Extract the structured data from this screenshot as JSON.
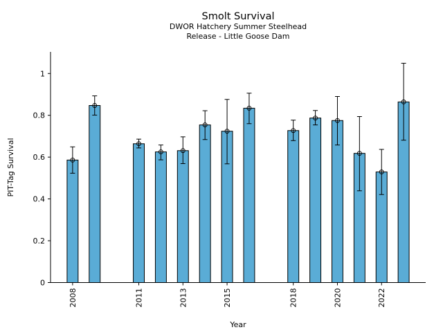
{
  "chart_data": {
    "type": "bar",
    "title": "Smolt Survival",
    "subtitle_lines": [
      "DWOR Hatchery Summer Steelhead",
      "Release - Little Goose Dam"
    ],
    "xlabel": "Year",
    "ylabel": "PIT-Tag Survival",
    "xlim": [
      2007,
      2024
    ],
    "ylim": [
      0,
      1.072
    ],
    "x_ticks": [
      2008,
      2011,
      2013,
      2015,
      2018,
      2020,
      2022
    ],
    "x_tick_labels": [
      "2008",
      "2011",
      "2013",
      "2015",
      "2018",
      "2020",
      "2022"
    ],
    "y_ticks": [
      0,
      0.2,
      0.4,
      0.6,
      0.8,
      1
    ],
    "y_tick_labels": [
      "0",
      "0.2",
      "0.4",
      "0.6",
      "0.8",
      "1"
    ],
    "grid": false,
    "bar_color": "#5aacd6",
    "edge_color": "#000000",
    "series": [
      {
        "name": "PIT-Tag Survival",
        "x": [
          2008,
          2009,
          2011,
          2012,
          2013,
          2014,
          2015,
          2016,
          2018,
          2019,
          2020,
          2021,
          2022,
          2023
        ],
        "values": [
          0.586,
          0.847,
          0.664,
          0.625,
          0.631,
          0.754,
          0.724,
          0.834,
          0.727,
          0.787,
          0.775,
          0.618,
          0.529,
          0.864
        ],
        "error_lower": [
          0.523,
          0.801,
          0.644,
          0.587,
          0.569,
          0.684,
          0.568,
          0.76,
          0.679,
          0.754,
          0.658,
          0.439,
          0.421,
          0.681
        ],
        "error_upper": [
          0.649,
          0.893,
          0.686,
          0.658,
          0.697,
          0.822,
          0.876,
          0.906,
          0.777,
          0.823,
          0.89,
          0.794,
          0.637,
          1.049
        ]
      }
    ]
  }
}
